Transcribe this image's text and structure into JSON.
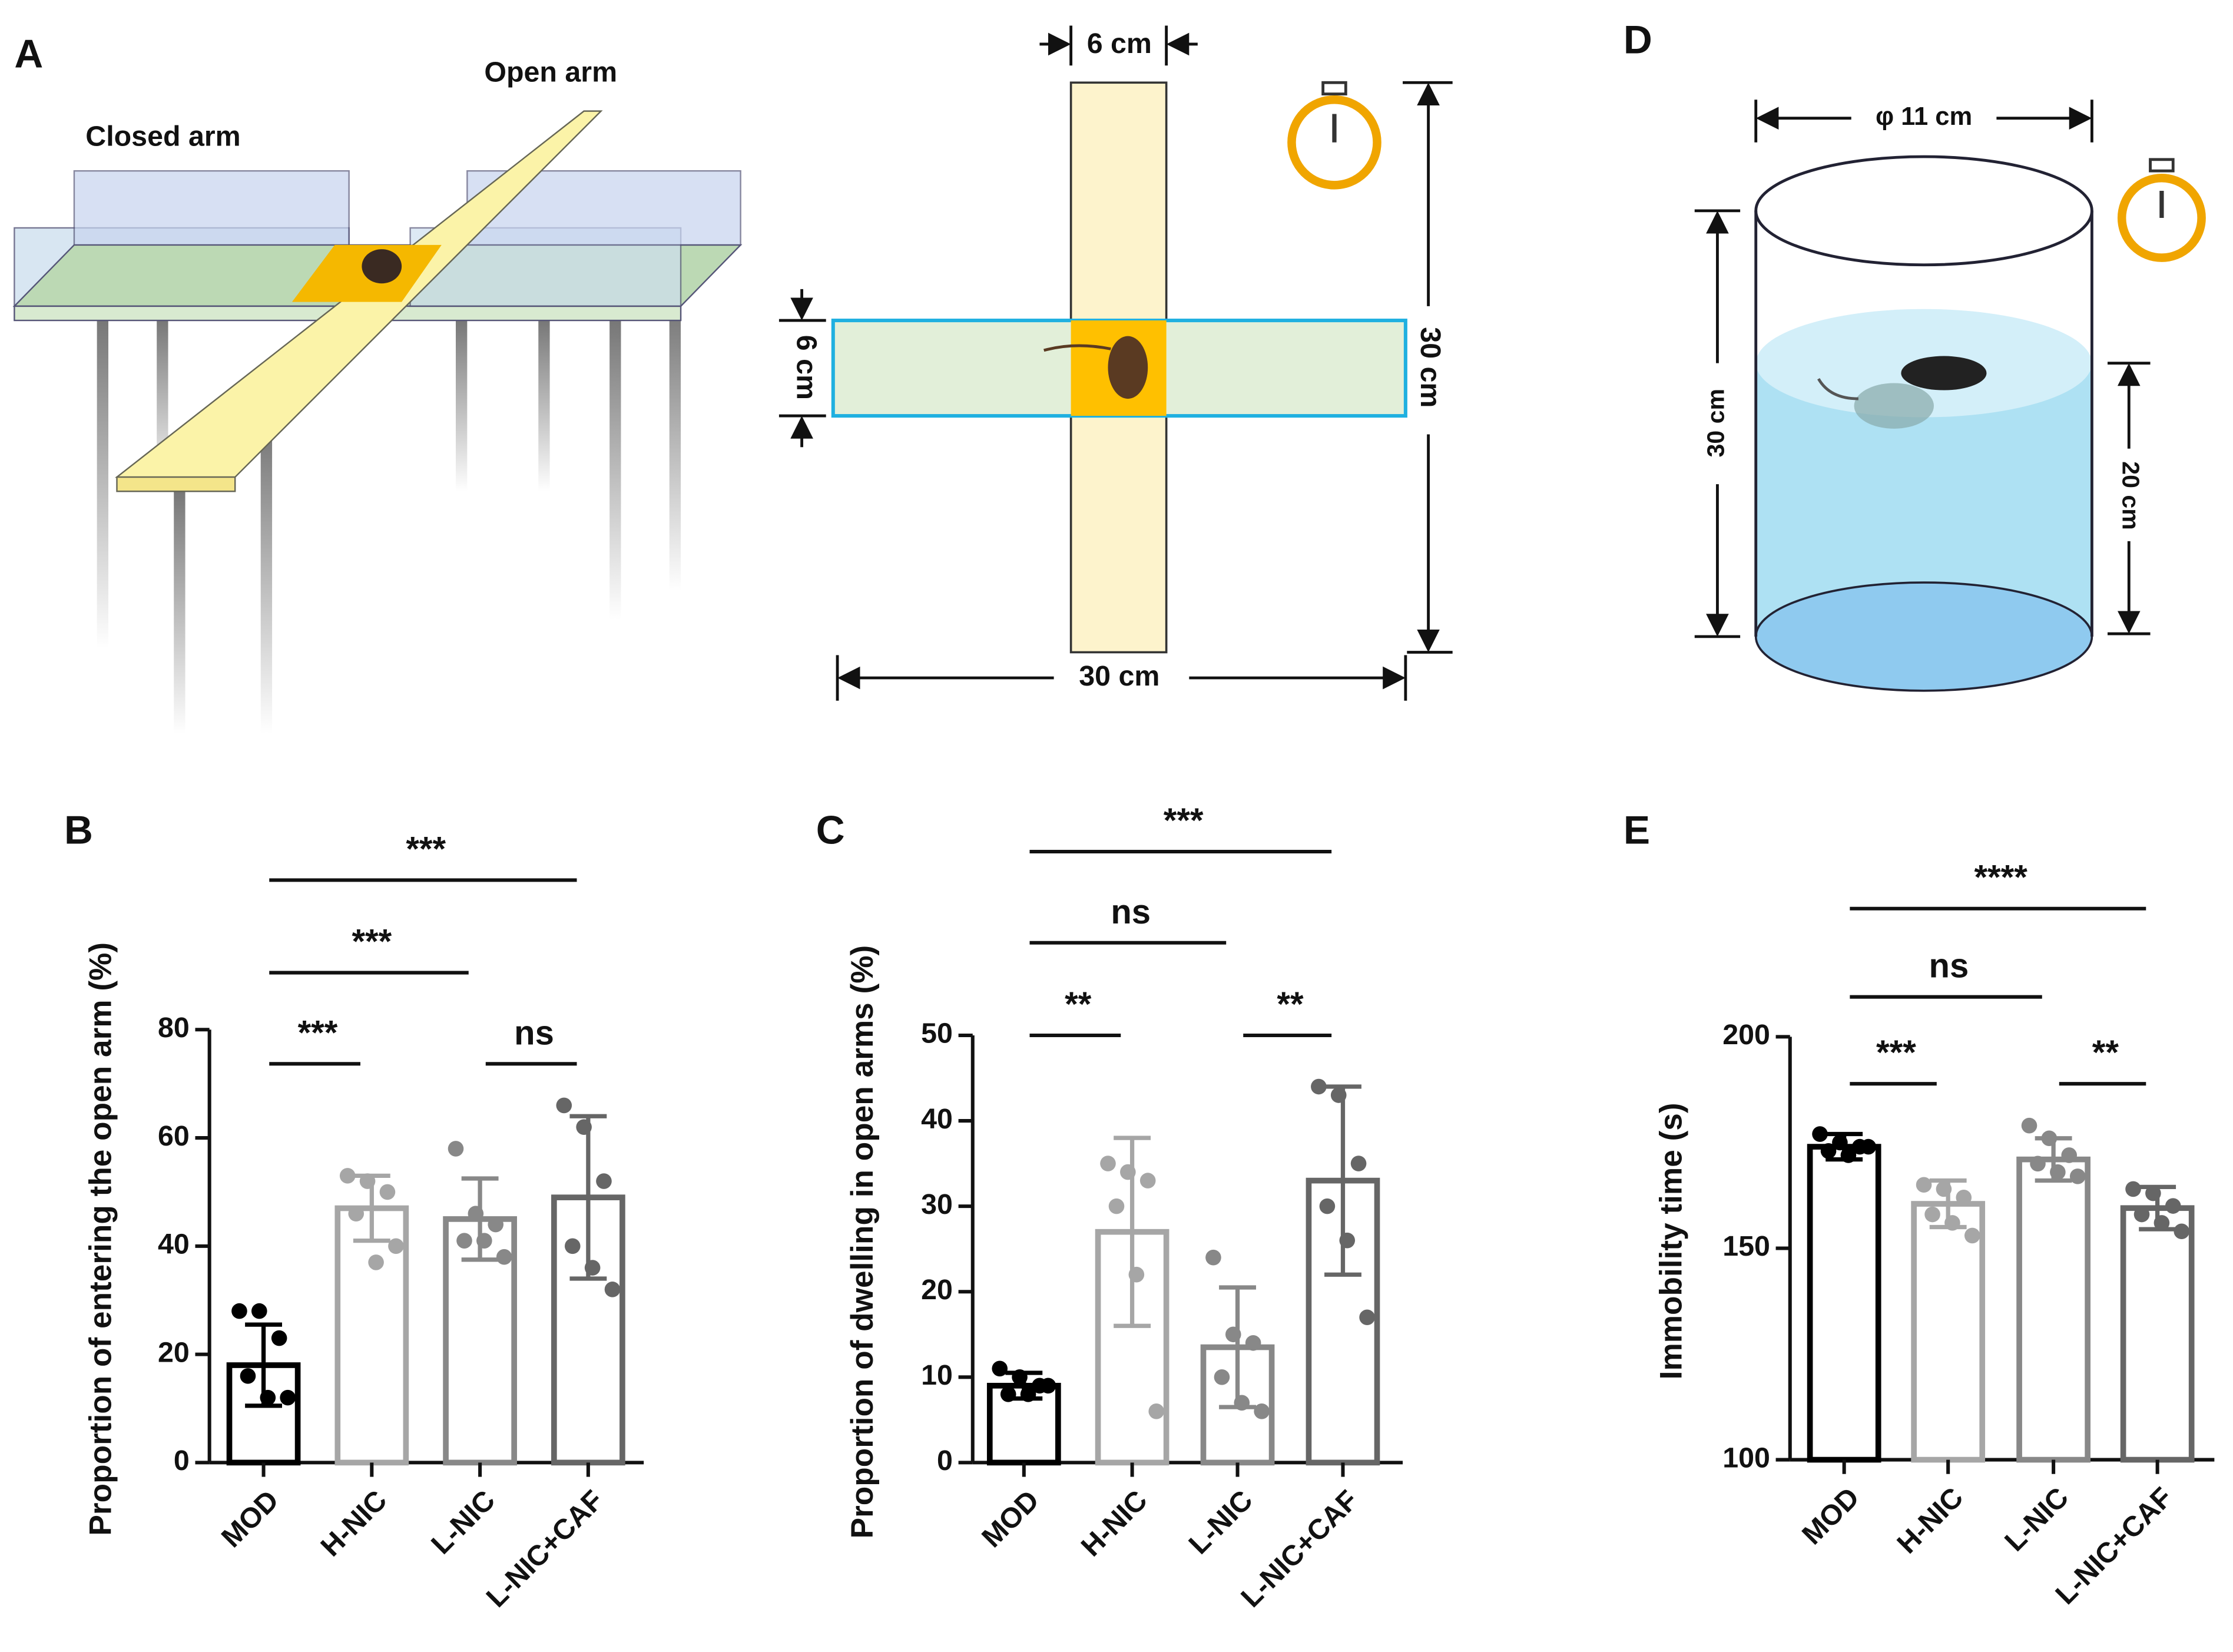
{
  "panels": {
    "a": {
      "letter": "A",
      "closed": "Closed arm",
      "open": "Open arm",
      "top": "6 cm",
      "left": "6 cm",
      "right": "30 cm",
      "bottom": "30 cm"
    },
    "d": {
      "letter": "D",
      "diameter": "φ 11 cm",
      "height": "30 cm",
      "water": "20 cm"
    }
  },
  "chart_data": [
    {
      "type": "bar",
      "panel": "B",
      "ylabel": "Proportion of entering the open arm (%)",
      "categories": [
        "MOD",
        "H-NIC",
        "L-NIC",
        "L-NIC+CAF"
      ],
      "colors": [
        "#000000",
        "#a6a6a6",
        "#888888",
        "#666666"
      ],
      "values": [
        18,
        47,
        45,
        49
      ],
      "errors": [
        7.5,
        6,
        7.5,
        15
      ],
      "points": [
        [
          28,
          28,
          23,
          16,
          12,
          12
        ],
        [
          53,
          52,
          50,
          46,
          37,
          40
        ],
        [
          58,
          46,
          44,
          41,
          41,
          38
        ],
        [
          66,
          62,
          52,
          40,
          36,
          32
        ]
      ],
      "ylim": [
        0,
        80
      ],
      "yticks": [
        0,
        20,
        40,
        60,
        80
      ],
      "significance": [
        "***",
        "***",
        "***",
        "ns"
      ]
    },
    {
      "type": "bar",
      "panel": "C",
      "ylabel": "Proportion of dwelling in open arms (%)",
      "categories": [
        "MOD",
        "H-NIC",
        "L-NIC",
        "L-NIC+CAF"
      ],
      "colors": [
        "#000000",
        "#a6a6a6",
        "#888888",
        "#666666"
      ],
      "values": [
        9,
        27,
        13.5,
        33
      ],
      "errors": [
        1.5,
        11,
        7,
        11
      ],
      "points": [
        [
          11,
          10,
          9,
          8,
          8,
          9
        ],
        [
          35,
          34,
          33,
          30,
          22,
          6
        ],
        [
          24,
          15,
          14,
          10,
          7,
          6
        ],
        [
          44,
          43,
          35,
          30,
          26,
          17
        ]
      ],
      "ylim": [
        0,
        50
      ],
      "yticks": [
        0,
        10,
        20,
        30,
        40,
        50
      ],
      "significance": [
        "***",
        "ns",
        "**",
        "**"
      ]
    },
    {
      "type": "bar",
      "panel": "E",
      "ylabel": "Immobility time (s)",
      "categories": [
        "MOD",
        "H-NIC",
        "L-NIC",
        "L-NIC+CAF"
      ],
      "colors": [
        "#000000",
        "#a6a6a6",
        "#888888",
        "#666666"
      ],
      "values": [
        174,
        160.5,
        171,
        159.5
      ],
      "errors": [
        3,
        5.5,
        5,
        5
      ],
      "points": [
        [
          177,
          175,
          174,
          173,
          172,
          174
        ],
        [
          165,
          164,
          162,
          158,
          156,
          153
        ],
        [
          179,
          176,
          172,
          170,
          168,
          167
        ],
        [
          164,
          163,
          160,
          158,
          156,
          154
        ]
      ],
      "ylim": [
        100,
        200
      ],
      "yticks": [
        100,
        150,
        200
      ],
      "significance": [
        "****",
        "ns",
        "***",
        "**"
      ]
    }
  ]
}
